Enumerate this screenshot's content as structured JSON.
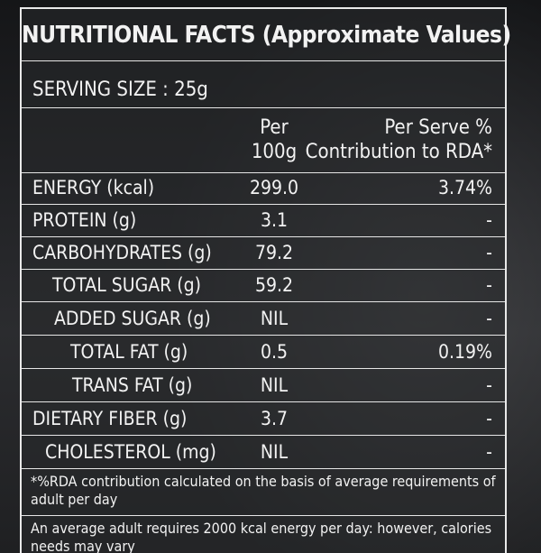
{
  "label": {
    "title": "NUTRITIONAL FACTS (Approximate Values)",
    "serving_size": "SERVING SIZE : 25g",
    "header": {
      "per_line1": "Per",
      "per_line2": "100g",
      "rda_line1": "Per Serve %",
      "rda_line2": "Contribution to RDA*"
    },
    "rows": [
      {
        "name": "ENERGY (kcal)",
        "per100g": "299.0",
        "rda": "3.74%"
      },
      {
        "name": "PROTEIN (g)",
        "per100g": "3.1",
        "rda": "-"
      },
      {
        "name": "CARBOHYDRATES (g)",
        "per100g": "79.2",
        "rda": "-"
      },
      {
        "name": "TOTAL SUGAR (g)",
        "per100g": "59.2",
        "rda": "-"
      },
      {
        "name": "ADDED SUGAR (g)",
        "per100g": "NIL",
        "rda": "-"
      },
      {
        "name": "TOTAL FAT (g)",
        "per100g": "0.5",
        "rda": "0.19%"
      },
      {
        "name": "TRANS FAT (g)",
        "per100g": "NIL",
        "rda": "-"
      },
      {
        "name": "DIETARY FIBER (g)",
        "per100g": "3.7",
        "rda": "-"
      },
      {
        "name": "CHOLESTEROL (mg)",
        "per100g": "NIL",
        "rda": "-"
      }
    ],
    "footnote1": "*%RDA contribution calculated on the basis of average requirements of adult per day",
    "footnote2": "An average adult requires 2000 kcal energy per day: however, calories needs may vary"
  }
}
